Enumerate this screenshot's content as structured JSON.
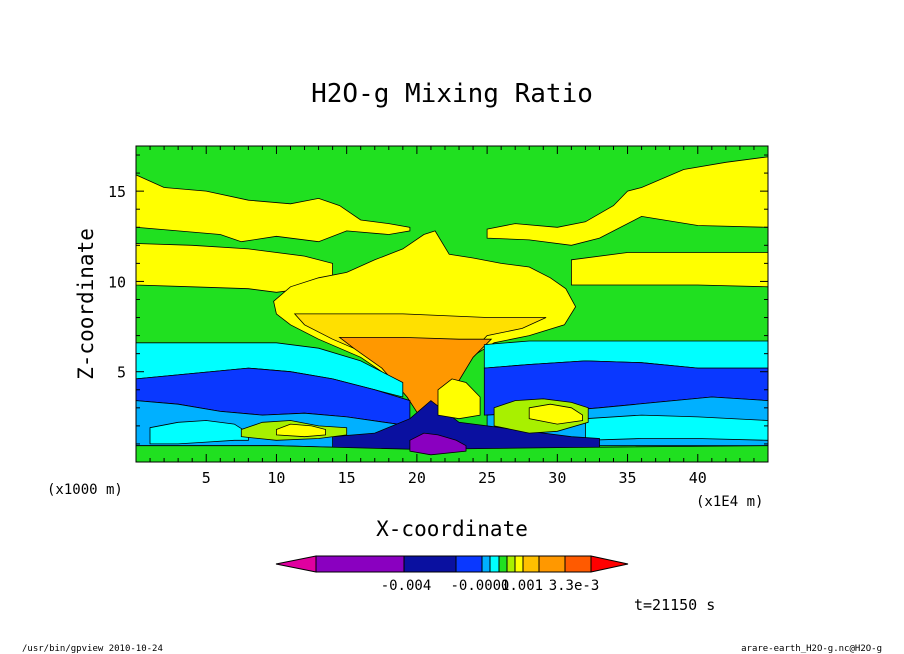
{
  "chart_data": {
    "type": "heatmap",
    "title": "H2O-g Mixing Ratio",
    "xlabel": "X-coordinate",
    "ylabel": "Z-coordinate",
    "x_unit_left": "(x1000 m)",
    "x_unit_right": "(x1E4 m)",
    "xlim": [
      0,
      45
    ],
    "ylim": [
      0,
      17.5
    ],
    "x_ticks": [
      5,
      10,
      15,
      20,
      25,
      30,
      35,
      40
    ],
    "y_ticks": [
      5,
      10,
      15
    ],
    "legend": {
      "colors": [
        "#e000a0",
        "#8a00c0",
        "#0a10a0",
        "#0a38ff",
        "#00b0ff",
        "#00ffff",
        "#20e020",
        "#a8f000",
        "#ffff00",
        "#ffc000",
        "#ff9800",
        "#ff5a00",
        "#ff0000"
      ],
      "labels": [
        "-0.004",
        "-0.0001",
        "0.001",
        "3.3e-3"
      ]
    },
    "time_label": "t=21150 s",
    "footer_left": "/usr/bin/gpview   2010-10-24",
    "footer_right": "arare-earth_H2O-g.nc@H2O-g",
    "colors": {
      "green": "#20e020",
      "yellow": "#ffff00",
      "lightyellow": "#ffe000",
      "orange": "#ff9800",
      "cyan": "#00ffff",
      "lightblue": "#00b0ff",
      "blue": "#0a38ff",
      "navy": "#0a10a0",
      "purple": "#8a00c0",
      "lime": "#a8f000"
    }
  }
}
